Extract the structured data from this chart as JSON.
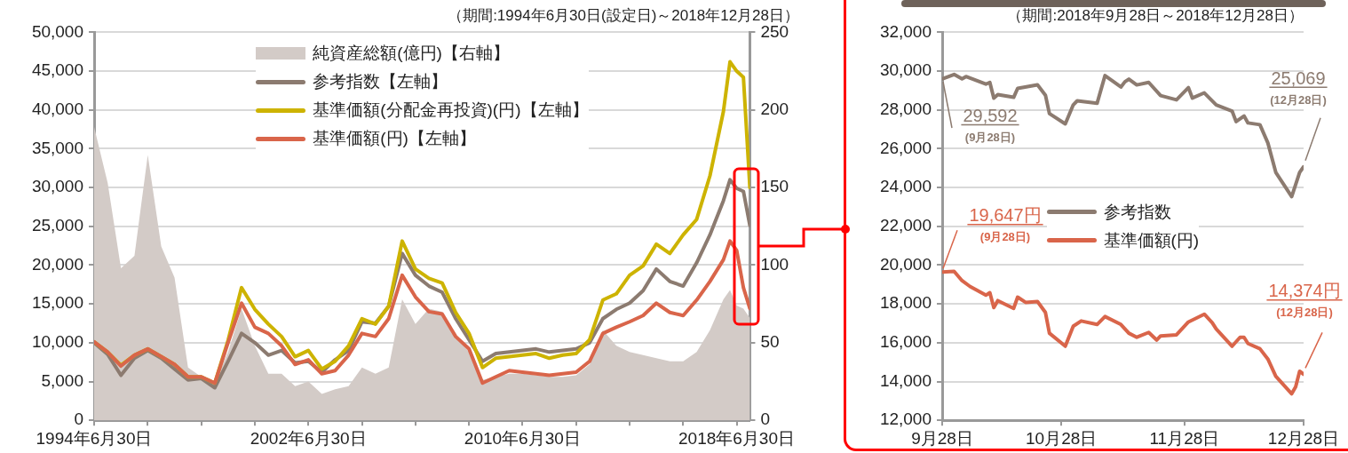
{
  "chart_data": [
    {
      "type": "line",
      "subtitle": "（期間:1994年6月30日(設定日)～2018年12月28日）",
      "x": [
        "1994-06-30",
        "1995-01",
        "1995-07",
        "1996-01",
        "1996-07",
        "1997-01",
        "1997-07",
        "1998-01",
        "1998-07",
        "1999-01",
        "1999-07",
        "2000-01",
        "2000-07",
        "2001-01",
        "2001-07",
        "2002-01",
        "2002-07",
        "2003-01",
        "2003-07",
        "2004-01",
        "2004-07",
        "2005-01",
        "2005-07",
        "2006-01",
        "2006-07",
        "2007-01",
        "2007-07",
        "2008-01",
        "2008-07",
        "2009-01",
        "2009-07",
        "2010-01",
        "2010-07",
        "2011-01",
        "2011-07",
        "2012-01",
        "2012-07",
        "2013-01",
        "2013-07",
        "2014-01",
        "2014-07",
        "2015-01",
        "2015-07",
        "2016-01",
        "2016-07",
        "2017-01",
        "2017-07",
        "2018-01",
        "2018-04",
        "2018-07",
        "2018-10",
        "2018-12-28"
      ],
      "series": [
        {
          "name": "純資産総額(億円)【右軸】",
          "type": "area",
          "axis": "y2",
          "color": "#d3cbc7",
          "values": [
            189,
            153,
            98,
            106,
            171,
            112,
            92,
            34,
            28,
            24,
            44,
            72,
            48,
            30,
            30,
            22,
            25,
            17,
            20,
            22,
            34,
            30,
            34,
            78,
            62,
            72,
            70,
            54,
            44,
            26,
            28,
            30,
            30,
            29,
            28,
            28,
            29,
            36,
            58,
            48,
            44,
            42,
            40,
            38,
            38,
            44,
            58,
            78,
            84,
            74,
            72,
            66
          ]
        },
        {
          "name": "参考指数【左軸】",
          "color": "#8c7b70",
          "values": [
            10000,
            8500,
            5800,
            8000,
            9000,
            8000,
            6600,
            5200,
            5400,
            4200,
            7600,
            11200,
            10000,
            8400,
            9000,
            7400,
            7600,
            6200,
            7800,
            9000,
            12700,
            12500,
            14700,
            21500,
            18700,
            17300,
            16500,
            13100,
            10400,
            7600,
            8600,
            8800,
            9000,
            9200,
            8800,
            9000,
            9200,
            10000,
            13100,
            14300,
            15100,
            16700,
            19500,
            17900,
            17300,
            20300,
            23900,
            28300,
            31000,
            29900,
            29500,
            25100
          ]
        },
        {
          "name": "基準価額(分配金再投資)(円)【左軸】",
          "color": "#cdb300",
          "values": [
            10100,
            8800,
            7100,
            8400,
            9200,
            8200,
            7200,
            5600,
            5600,
            4800,
            10300,
            17100,
            14300,
            12400,
            10800,
            8200,
            9000,
            6600,
            7600,
            9600,
            13100,
            12400,
            14700,
            23100,
            19500,
            18300,
            17700,
            13900,
            11200,
            6800,
            8000,
            8200,
            8400,
            8600,
            8000,
            8400,
            8600,
            10400,
            15500,
            16300,
            18700,
            19900,
            22700,
            21500,
            23900,
            25900,
            31500,
            39800,
            46200,
            45000,
            44200,
            30000
          ]
        },
        {
          "name": "基準価額(円)【左軸】",
          "color": "#d9654a",
          "values": [
            10100,
            8800,
            7000,
            8400,
            9200,
            8200,
            7200,
            5600,
            5600,
            4800,
            10000,
            15100,
            12000,
            11200,
            9600,
            7200,
            7800,
            6000,
            6400,
            8400,
            11200,
            10800,
            13100,
            18700,
            15900,
            14000,
            13700,
            10800,
            9200,
            4800,
            5600,
            6400,
            6200,
            6000,
            5800,
            6000,
            6200,
            7600,
            11200,
            12000,
            12700,
            13500,
            15100,
            13900,
            13500,
            15500,
            17900,
            20700,
            23100,
            21900,
            17100,
            14400
          ]
        }
      ],
      "xlim": [
        "1994-06-30",
        "2018-12-28"
      ],
      "xticks": [
        {
          "value": "1994-06-30",
          "label": "1994年6月30日"
        },
        {
          "value": "1996-06-30",
          "label": null
        },
        {
          "value": "1998-06-30",
          "label": null
        },
        {
          "value": "2000-06-30",
          "label": null
        },
        {
          "value": "2002-06-30",
          "label": "2002年6月30日"
        },
        {
          "value": "2004-06-30",
          "label": null
        },
        {
          "value": "2006-06-30",
          "label": null
        },
        {
          "value": "2008-06-30",
          "label": null
        },
        {
          "value": "2010-06-30",
          "label": "2010年6月30日"
        },
        {
          "value": "2012-06-30",
          "label": null
        },
        {
          "value": "2014-06-30",
          "label": null
        },
        {
          "value": "2016-06-30",
          "label": null
        },
        {
          "value": "2018-06-30",
          "label": "2018年6月30日"
        }
      ],
      "ylim": [
        0,
        50000
      ],
      "yticks": [
        0,
        {
          "value": 5000,
          "label": "5,000"
        },
        {
          "value": 10000,
          "label": "10,000"
        },
        {
          "value": 15000,
          "label": "15,000"
        },
        {
          "value": 20000,
          "label": "20,000"
        },
        {
          "value": 25000,
          "label": "25,000"
        },
        {
          "value": 30000,
          "label": "30,000"
        },
        {
          "value": 35000,
          "label": "35,000"
        },
        {
          "value": 40000,
          "label": "40,000"
        },
        {
          "value": 45000,
          "label": "45,000"
        },
        {
          "value": 50000,
          "label": "50,000"
        }
      ],
      "y2lim": [
        0,
        250
      ],
      "y2ticks": [
        0,
        50,
        100,
        150,
        200,
        250
      ],
      "grid": "y",
      "legend": "top"
    },
    {
      "type": "line",
      "subtitle": "（期間:2018年9月28日～2018年12月28日）",
      "series": [
        {
          "name": "参考指数",
          "color": "#8c7b70",
          "x": [
            "--09-28",
            "--10-01",
            "--10-03",
            "--10-04",
            "--10-09",
            "--10-10",
            "--10-11",
            "--10-12",
            "--10-16",
            "--10-17",
            "--10-22",
            "--10-24",
            "--10-25",
            "--10-29",
            "--10-31",
            "--11-01",
            "--11-06",
            "--11-08",
            "--11-12",
            "--11-13",
            "--11-14",
            "--11-16",
            "--11-19",
            "--11-22",
            "--11-26",
            "--11-29",
            "--11-30",
            "--12-03",
            "--12-06",
            "--12-10",
            "--12-11",
            "--12-13",
            "--12-14",
            "--12-17",
            "--12-19",
            "--12-21",
            "--12-25",
            "--12-27",
            "--12-28"
          ],
          "values": [
            29592,
            29830,
            29600,
            29720,
            29330,
            29420,
            28610,
            28790,
            28650,
            29110,
            29290,
            28760,
            27810,
            27280,
            28260,
            28470,
            28340,
            29770,
            29180,
            29450,
            29590,
            29290,
            29420,
            28740,
            28520,
            29150,
            28610,
            28880,
            28260,
            27940,
            27400,
            27690,
            27330,
            27240,
            26300,
            24780,
            23530,
            24780,
            25069
          ]
        },
        {
          "name": "基準価額(円)",
          "color": "#d9654a",
          "x": [
            "--09-28",
            "--10-01",
            "--10-03",
            "--10-05",
            "--10-09",
            "--10-10",
            "--10-11",
            "--10-12",
            "--10-16",
            "--10-17",
            "--10-19",
            "--10-22",
            "--10-24",
            "--10-25",
            "--10-29",
            "--10-31",
            "--11-02",
            "--11-06",
            "--11-08",
            "--11-12",
            "--11-14",
            "--11-16",
            "--11-19",
            "--11-21",
            "--11-22",
            "--11-26",
            "--11-29",
            "--12-03",
            "--12-05",
            "--12-06",
            "--12-10",
            "--12-12",
            "--12-13",
            "--12-14",
            "--12-17",
            "--12-19",
            "--12-21",
            "--12-25",
            "--12-26",
            "--12-27",
            "--12-28"
          ],
          "values": [
            19647,
            19680,
            19200,
            18900,
            18450,
            18580,
            17810,
            18170,
            17770,
            18350,
            18080,
            18120,
            17560,
            16490,
            15820,
            16850,
            17120,
            16940,
            17350,
            16940,
            16490,
            16280,
            16530,
            16140,
            16350,
            16410,
            17070,
            17470,
            17030,
            16710,
            15820,
            16280,
            16280,
            15960,
            15690,
            15160,
            14270,
            13370,
            13730,
            14530,
            14374
          ]
        }
      ],
      "xlim": [
        "--09-28",
        "--12-28"
      ],
      "xticks": [
        {
          "value": "--09-28",
          "label": "9月28日"
        },
        {
          "value": "--10-28",
          "label": "10月28日"
        },
        {
          "value": "--11-28",
          "label": "11月28日"
        },
        {
          "value": "--12-28",
          "label": "12月28日"
        }
      ],
      "ylim": [
        12000,
        32000
      ],
      "yticks": [
        {
          "value": 12000,
          "label": "12,000"
        },
        {
          "value": 14000,
          "label": "14,000"
        },
        {
          "value": 16000,
          "label": "16,000"
        },
        {
          "value": 18000,
          "label": "18,000"
        },
        {
          "value": 20000,
          "label": "20,000"
        },
        {
          "value": 22000,
          "label": "22,000"
        },
        {
          "value": 24000,
          "label": "24,000"
        },
        {
          "value": 26000,
          "label": "26,000"
        },
        {
          "value": 28000,
          "label": "28,000"
        },
        {
          "value": 30000,
          "label": "30,000"
        },
        {
          "value": 32000,
          "label": "32,000"
        }
      ],
      "grid": "y",
      "legend": "center",
      "annotations": [
        {
          "text": "29,592\n(9月28日)",
          "x": "--09-28",
          "y": 29592
        },
        {
          "text": "25,069\n(12月28日)",
          "x": "--12-28",
          "y": 25069
        },
        {
          "text": "19,647円\n(9月28日)",
          "x": "--09-28",
          "y": 19647
        },
        {
          "text": "14,374円\n(12月28日)",
          "x": "--12-28",
          "y": 14374
        }
      ]
    }
  ]
}
